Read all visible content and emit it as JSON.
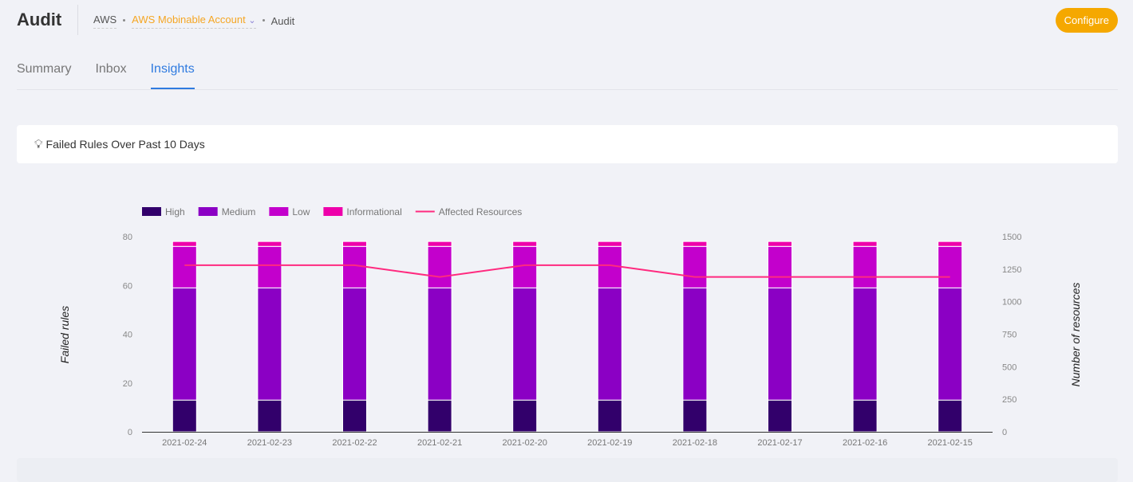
{
  "header": {
    "title": "Audit",
    "breadcrumb": [
      "AWS",
      "AWS Mobinable Account",
      "Audit"
    ],
    "configure_label": "Configure"
  },
  "tabs": [
    {
      "label": "Summary"
    },
    {
      "label": "Inbox"
    },
    {
      "label": "Insights",
      "active": true
    }
  ],
  "card": {
    "icon": "lightbulb-icon",
    "title": "Failed Rules Over Past 10 Days"
  },
  "colors": {
    "High": "#32006b",
    "Medium": "#8b00c4",
    "Low": "#c300cc",
    "Informational": "#ee00aa",
    "line": "#ff2a7f",
    "accent": "#f5a800"
  },
  "chart_data": {
    "type": "bar",
    "categories": [
      "2021-02-24",
      "2021-02-23",
      "2021-02-22",
      "2021-02-21",
      "2021-02-20",
      "2021-02-19",
      "2021-02-18",
      "2021-02-17",
      "2021-02-16",
      "2021-02-15"
    ],
    "series": [
      {
        "name": "High",
        "values": [
          13,
          13,
          13,
          13,
          13,
          13,
          13,
          13,
          13,
          13
        ]
      },
      {
        "name": "Medium",
        "values": [
          46,
          46,
          46,
          46,
          46,
          46,
          46,
          46,
          46,
          46
        ]
      },
      {
        "name": "Low",
        "values": [
          17,
          17,
          17,
          17,
          17,
          17,
          17,
          17,
          17,
          17
        ]
      },
      {
        "name": "Informational",
        "values": [
          2,
          2,
          2,
          2,
          2,
          2,
          2,
          2,
          2,
          2
        ]
      }
    ],
    "line": {
      "name": "Affected Resources",
      "values": [
        1280,
        1280,
        1280,
        1190,
        1280,
        1280,
        1190,
        1190,
        1190,
        1190
      ]
    },
    "ylabel": "Failed rules",
    "y2label": "Number of resources",
    "ylim": [
      0,
      80
    ],
    "yticks": [
      0,
      20,
      40,
      60,
      80
    ],
    "y2lim": [
      0,
      1500
    ],
    "y2ticks": [
      0,
      250,
      500,
      750,
      1000,
      1250,
      1500
    ],
    "legend": "top-left",
    "stacked": true
  }
}
